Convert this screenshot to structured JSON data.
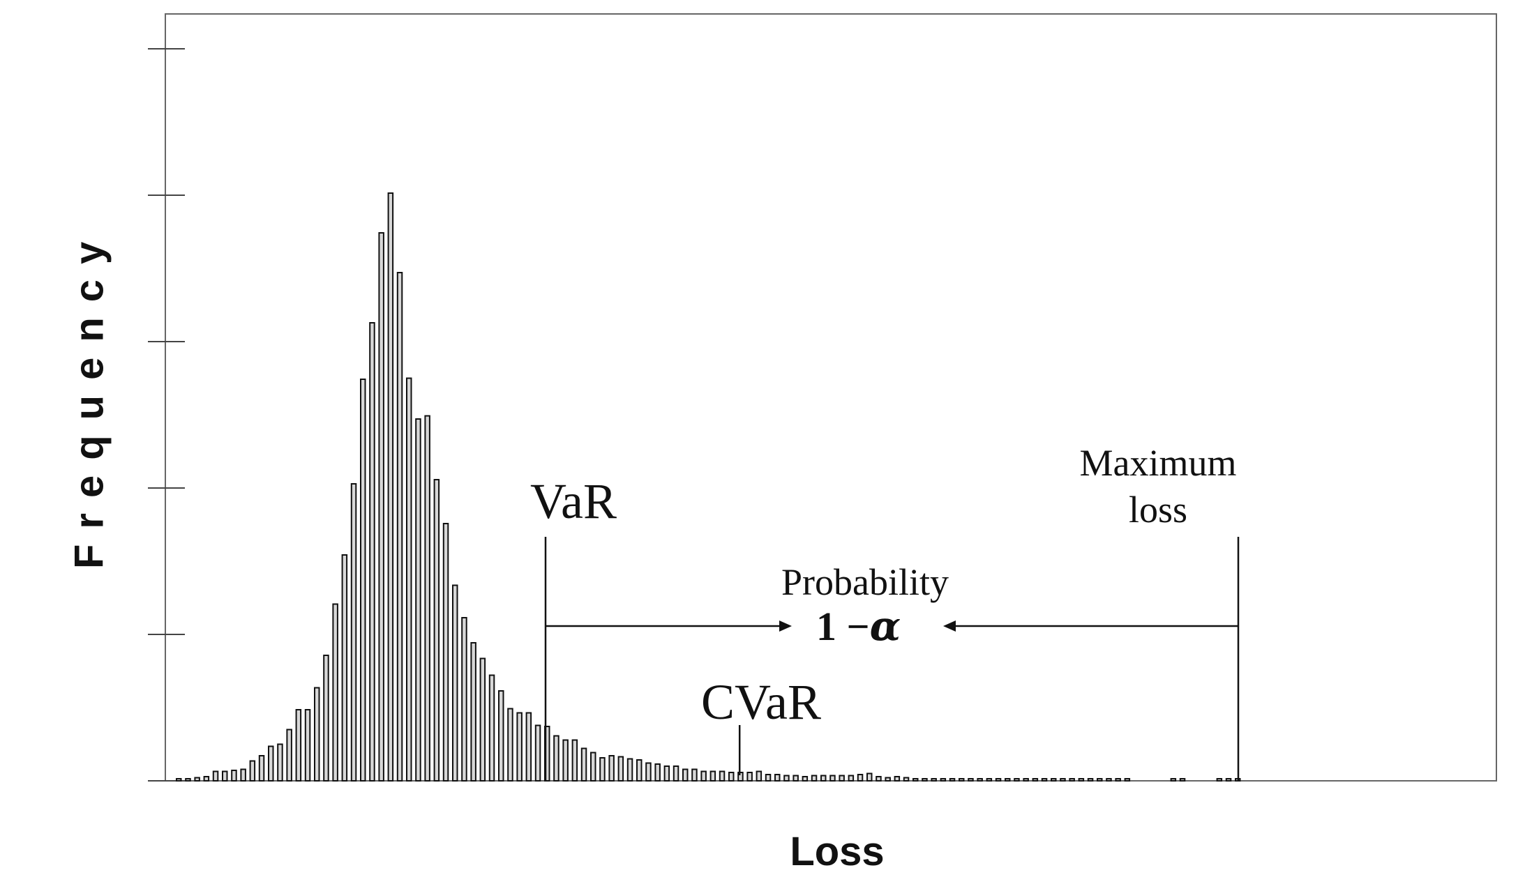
{
  "chart_data": {
    "type": "bar",
    "xlabel": "Loss",
    "ylabel": "Frequency",
    "values": [
      0.2,
      0.2,
      0.3,
      0.4,
      0.9,
      0.9,
      1.0,
      1.1,
      1.9,
      2.4,
      3.3,
      3.5,
      4.9,
      6.8,
      6.8,
      8.9,
      12.0,
      16.9,
      21.6,
      28.4,
      38.4,
      43.8,
      52.4,
      56.2,
      48.6,
      38.5,
      34.6,
      34.9,
      28.8,
      24.6,
      18.7,
      15.6,
      13.2,
      11.7,
      10.1,
      8.6,
      6.9,
      6.5,
      6.5,
      5.3,
      5.2,
      4.3,
      3.9,
      3.9,
      3.1,
      2.7,
      2.2,
      2.4,
      2.3,
      2.1,
      2.0,
      1.7,
      1.6,
      1.4,
      1.4,
      1.1,
      1.1,
      0.9,
      0.9,
      0.9,
      0.8,
      0.8,
      0.8,
      0.9,
      0.6,
      0.6,
      0.5,
      0.5,
      0.4,
      0.5,
      0.5,
      0.5,
      0.5,
      0.5,
      0.6,
      0.7,
      0.4,
      0.3,
      0.4,
      0.3,
      0.2,
      0.2,
      0.2,
      0.2,
      0.2,
      0.2,
      0.2,
      0.2,
      0.2,
      0.2,
      0.2,
      0.2,
      0.2,
      0.2,
      0.2,
      0.2,
      0.2,
      0.2,
      0.2,
      0.2,
      0.2,
      0.2,
      0.2,
      0.2,
      0,
      0,
      0,
      0,
      0.2,
      0.2,
      0,
      0,
      0,
      0.2,
      0.2,
      0.2
    ],
    "ylim": [
      0,
      70
    ],
    "yticks": [
      0,
      14,
      28,
      42,
      56,
      70
    ],
    "annotations": {
      "var": "VaR",
      "cvar": "CVaR",
      "max_line1": "Maximum",
      "max_line2": "loss",
      "probability": "Probability",
      "one_minus": "1  −",
      "alpha": "α"
    },
    "var_index": 40,
    "cvar_index": 61,
    "max_index": 115
  }
}
